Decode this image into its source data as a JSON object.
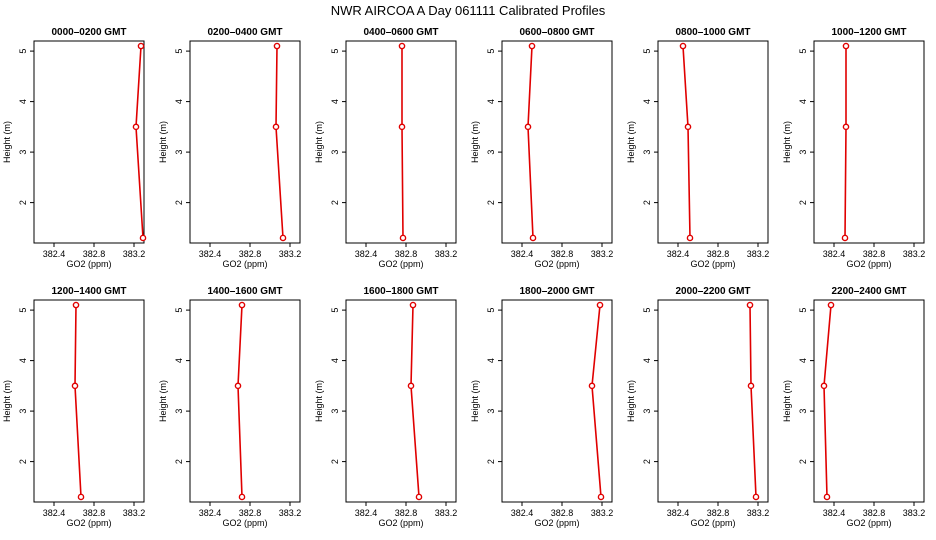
{
  "figure": {
    "title": "NWR AIRCOA A  Day 061111  Calibrated Profiles"
  },
  "chart_data": [
    {
      "type": "line",
      "title": "0000–0200 GMT",
      "xlabel": "GO2 (ppm)",
      "ylabel": "Height (m)",
      "xlim": [
        382.2,
        383.3
      ],
      "ylim": [
        1.2,
        5.2
      ],
      "xticks": [
        "382.4",
        "382.8",
        "383.2"
      ],
      "yticks": [
        "2",
        "3",
        "4",
        "5"
      ],
      "grid": false,
      "series": [
        {
          "points": [
            {
              "x": 383.27,
              "y": 5.1
            },
            {
              "x": 383.22,
              "y": 3.5
            },
            {
              "x": 383.29,
              "y": 1.3
            }
          ]
        }
      ]
    },
    {
      "type": "line",
      "title": "0200–0400 GMT",
      "xlabel": "GO2 (ppm)",
      "ylabel": "Height (m)",
      "xlim": [
        382.2,
        383.3
      ],
      "ylim": [
        1.2,
        5.2
      ],
      "xticks": [
        "382.4",
        "382.8",
        "383.2"
      ],
      "yticks": [
        "2",
        "3",
        "4",
        "5"
      ],
      "grid": false,
      "series": [
        {
          "points": [
            {
              "x": 383.07,
              "y": 5.1
            },
            {
              "x": 383.06,
              "y": 3.5
            },
            {
              "x": 383.13,
              "y": 1.3
            }
          ]
        }
      ]
    },
    {
      "type": "line",
      "title": "0400–0600 GMT",
      "xlabel": "GO2 (ppm)",
      "ylabel": "Height (m)",
      "xlim": [
        382.2,
        383.3
      ],
      "ylim": [
        1.2,
        5.2
      ],
      "xticks": [
        "382.4",
        "382.8",
        "383.2"
      ],
      "yticks": [
        "2",
        "3",
        "4",
        "5"
      ],
      "grid": false,
      "series": [
        {
          "points": [
            {
              "x": 382.76,
              "y": 5.1
            },
            {
              "x": 382.76,
              "y": 3.5
            },
            {
              "x": 382.77,
              "y": 1.3
            }
          ]
        }
      ]
    },
    {
      "type": "line",
      "title": "0600–0800 GMT",
      "xlabel": "GO2 (ppm)",
      "ylabel": "Height (m)",
      "xlim": [
        382.2,
        383.3
      ],
      "ylim": [
        1.2,
        5.2
      ],
      "xticks": [
        "382.4",
        "382.8",
        "383.2"
      ],
      "yticks": [
        "2",
        "3",
        "4",
        "5"
      ],
      "grid": false,
      "series": [
        {
          "points": [
            {
              "x": 382.5,
              "y": 5.1
            },
            {
              "x": 382.46,
              "y": 3.5
            },
            {
              "x": 382.51,
              "y": 1.3
            }
          ]
        }
      ]
    },
    {
      "type": "line",
      "title": "0800–1000 GMT",
      "xlabel": "GO2 (ppm)",
      "ylabel": "Height (m)",
      "xlim": [
        382.2,
        383.3
      ],
      "ylim": [
        1.2,
        5.2
      ],
      "xticks": [
        "382.4",
        "382.8",
        "383.2"
      ],
      "yticks": [
        "2",
        "3",
        "4",
        "5"
      ],
      "grid": false,
      "series": [
        {
          "points": [
            {
              "x": 382.45,
              "y": 5.1
            },
            {
              "x": 382.5,
              "y": 3.5
            },
            {
              "x": 382.52,
              "y": 1.3
            }
          ]
        }
      ]
    },
    {
      "type": "line",
      "title": "1000–1200 GMT",
      "xlabel": "GO2 (ppm)",
      "ylabel": "Height (m)",
      "xlim": [
        382.2,
        383.3
      ],
      "ylim": [
        1.2,
        5.2
      ],
      "xticks": [
        "382.4",
        "382.8",
        "383.2"
      ],
      "yticks": [
        "2",
        "3",
        "4",
        "5"
      ],
      "grid": false,
      "series": [
        {
          "points": [
            {
              "x": 382.52,
              "y": 5.1
            },
            {
              "x": 382.52,
              "y": 3.5
            },
            {
              "x": 382.51,
              "y": 1.3
            }
          ]
        }
      ]
    },
    {
      "type": "line",
      "title": "1200–1400 GMT",
      "xlabel": "GO2 (ppm)",
      "ylabel": "Height (m)",
      "xlim": [
        382.2,
        383.3
      ],
      "ylim": [
        1.2,
        5.2
      ],
      "xticks": [
        "382.4",
        "382.8",
        "383.2"
      ],
      "yticks": [
        "2",
        "3",
        "4",
        "5"
      ],
      "grid": false,
      "series": [
        {
          "points": [
            {
              "x": 382.62,
              "y": 5.1
            },
            {
              "x": 382.61,
              "y": 3.5
            },
            {
              "x": 382.67,
              "y": 1.3
            }
          ]
        }
      ]
    },
    {
      "type": "line",
      "title": "1400–1600 GMT",
      "xlabel": "GO2 (ppm)",
      "ylabel": "Height (m)",
      "xlim": [
        382.2,
        383.3
      ],
      "ylim": [
        1.2,
        5.2
      ],
      "xticks": [
        "382.4",
        "382.8",
        "383.2"
      ],
      "yticks": [
        "2",
        "3",
        "4",
        "5"
      ],
      "grid": false,
      "series": [
        {
          "points": [
            {
              "x": 382.72,
              "y": 5.1
            },
            {
              "x": 382.68,
              "y": 3.5
            },
            {
              "x": 382.72,
              "y": 1.3
            }
          ]
        }
      ]
    },
    {
      "type": "line",
      "title": "1600–1800 GMT",
      "xlabel": "GO2 (ppm)",
      "ylabel": "Height (m)",
      "xlim": [
        382.2,
        383.3
      ],
      "ylim": [
        1.2,
        5.2
      ],
      "xticks": [
        "382.4",
        "382.8",
        "383.2"
      ],
      "yticks": [
        "2",
        "3",
        "4",
        "5"
      ],
      "grid": false,
      "series": [
        {
          "points": [
            {
              "x": 382.87,
              "y": 5.1
            },
            {
              "x": 382.85,
              "y": 3.5
            },
            {
              "x": 382.93,
              "y": 1.3
            }
          ]
        }
      ]
    },
    {
      "type": "line",
      "title": "1800–2000 GMT",
      "xlabel": "GO2 (ppm)",
      "ylabel": "Height (m)",
      "xlim": [
        382.2,
        383.3
      ],
      "ylim": [
        1.2,
        5.2
      ],
      "xticks": [
        "382.4",
        "382.8",
        "383.2"
      ],
      "yticks": [
        "2",
        "3",
        "4",
        "5"
      ],
      "grid": false,
      "series": [
        {
          "points": [
            {
              "x": 383.18,
              "y": 5.1
            },
            {
              "x": 383.1,
              "y": 3.5
            },
            {
              "x": 383.19,
              "y": 1.3
            }
          ]
        }
      ]
    },
    {
      "type": "line",
      "title": "2000–2200 GMT",
      "xlabel": "GO2 (ppm)",
      "ylabel": "Height (m)",
      "xlim": [
        382.2,
        383.3
      ],
      "ylim": [
        1.2,
        5.2
      ],
      "xticks": [
        "382.4",
        "382.8",
        "383.2"
      ],
      "yticks": [
        "2",
        "3",
        "4",
        "5"
      ],
      "grid": false,
      "series": [
        {
          "points": [
            {
              "x": 383.12,
              "y": 5.1
            },
            {
              "x": 383.13,
              "y": 3.5
            },
            {
              "x": 383.18,
              "y": 1.3
            }
          ]
        }
      ]
    },
    {
      "type": "line",
      "title": "2200–2400 GMT",
      "xlabel": "GO2 (ppm)",
      "ylabel": "Height (m)",
      "xlim": [
        382.2,
        383.3
      ],
      "ylim": [
        1.2,
        5.2
      ],
      "xticks": [
        "382.4",
        "382.8",
        "383.2"
      ],
      "yticks": [
        "2",
        "3",
        "4",
        "5"
      ],
      "grid": false,
      "series": [
        {
          "points": [
            {
              "x": 382.37,
              "y": 5.1
            },
            {
              "x": 382.3,
              "y": 3.5
            },
            {
              "x": 382.33,
              "y": 1.3
            }
          ]
        }
      ]
    }
  ]
}
